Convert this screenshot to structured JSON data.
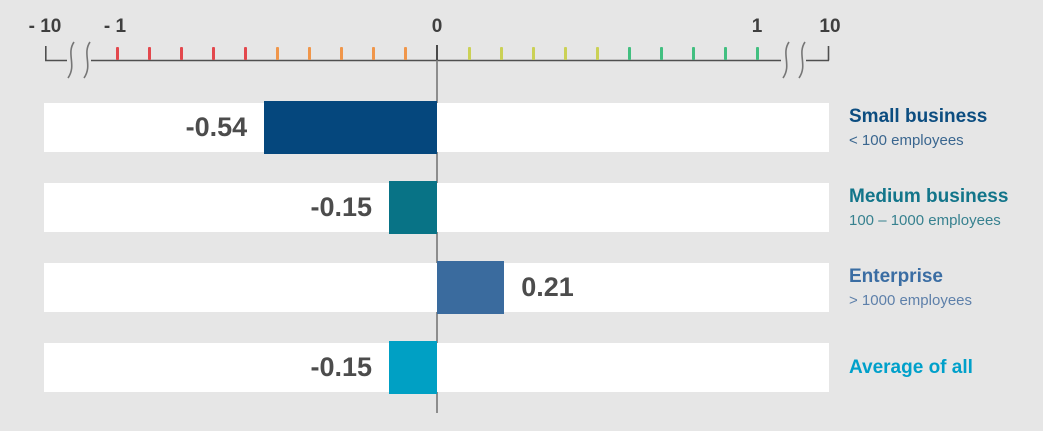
{
  "chart_data": {
    "type": "bar",
    "orientation": "horizontal",
    "title": "",
    "categories": [
      "Small business",
      "Medium business",
      "Enterprise",
      "Average of all"
    ],
    "category_subtitles": [
      "< 100 employees",
      "100 – 1000 employees",
      "> 1000 employees",
      ""
    ],
    "values": [
      -0.54,
      -0.15,
      0.21,
      -0.15
    ],
    "value_labels": [
      "-0.54",
      "-0.15",
      "0.21",
      "-0.15"
    ],
    "series_colors": [
      "#05477d",
      "#087386",
      "#3a6b9e",
      "#00a0c4"
    ],
    "category_title_colors": [
      "#0c4d80",
      "#12758a",
      "#3a6da3",
      "#00a0ca"
    ],
    "category_subtitle_colors": [
      "#3a668f",
      "#37818f",
      "#5e80aa",
      ""
    ],
    "axis": {
      "position": "top",
      "visible_range": [
        -1,
        1
      ],
      "full_range": [
        -10,
        10
      ],
      "has_break_marks": true,
      "major_labels": [
        "- 10",
        "- 1",
        "0",
        "1",
        "10"
      ],
      "minor_ticks": [
        {
          "value": -1.0,
          "color": "#e3484d"
        },
        {
          "value": -0.9,
          "color": "#e3484d"
        },
        {
          "value": -0.8,
          "color": "#e3484d"
        },
        {
          "value": -0.7,
          "color": "#e3484d"
        },
        {
          "value": -0.6,
          "color": "#e3484d"
        },
        {
          "value": -0.5,
          "color": "#f0964a"
        },
        {
          "value": -0.4,
          "color": "#f0964a"
        },
        {
          "value": -0.3,
          "color": "#f0964a"
        },
        {
          "value": -0.2,
          "color": "#f0964a"
        },
        {
          "value": -0.1,
          "color": "#f0964a"
        },
        {
          "value": 0.1,
          "color": "#cbd156"
        },
        {
          "value": 0.2,
          "color": "#cbd156"
        },
        {
          "value": 0.3,
          "color": "#cbd156"
        },
        {
          "value": 0.4,
          "color": "#cbd156"
        },
        {
          "value": 0.5,
          "color": "#cbd156"
        },
        {
          "value": 0.6,
          "color": "#42bf80"
        },
        {
          "value": 0.7,
          "color": "#42bf80"
        },
        {
          "value": 0.8,
          "color": "#42bf80"
        },
        {
          "value": 0.9,
          "color": "#42bf80"
        },
        {
          "value": 1.0,
          "color": "#42bf80"
        }
      ]
    },
    "zero_line": true,
    "colors": {
      "background": "#e6e6e6",
      "row_band": "#ffffff",
      "axis_line": "#4f4f4f",
      "zero_line": "#8d8d8d",
      "break_mark": "#767676",
      "axis_label": "#3f3f3f",
      "value_label": "#4c4c4c"
    }
  }
}
